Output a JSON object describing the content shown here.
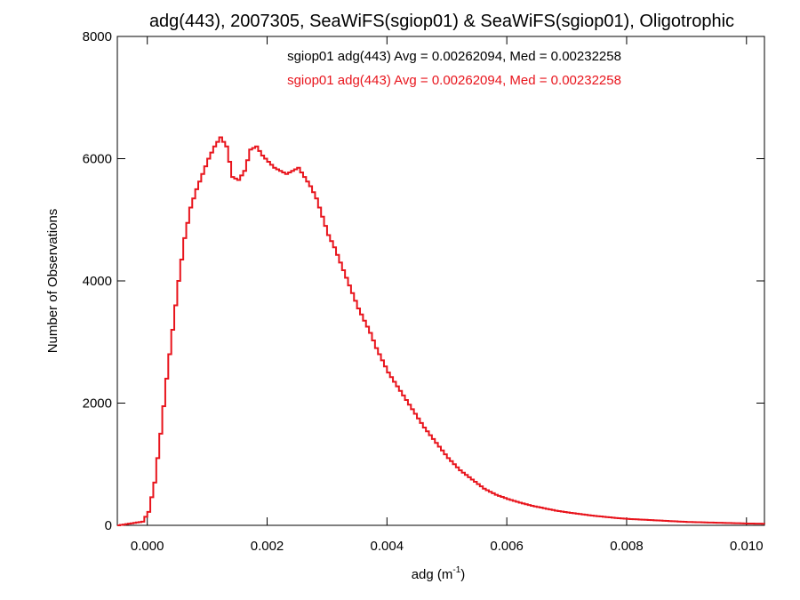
{
  "chart_data": {
    "type": "line",
    "title": "adg(443), 2007305, SeaWiFS(sgiop01) & SeaWiFS(sgiop01), Oligotrophic",
    "xlabel_base": "adg (m",
    "xlabel_sup": "-1",
    "xlabel_end": ")",
    "ylabel": "Number of Observations",
    "xlim": [
      -0.0005,
      0.0103
    ],
    "ylim": [
      0,
      8000
    ],
    "x_ticks": [
      0.0,
      0.002,
      0.004,
      0.006,
      0.008,
      0.01
    ],
    "x_tick_labels": [
      "0.000",
      "0.002",
      "0.004",
      "0.006",
      "0.008",
      "0.010"
    ],
    "y_ticks": [
      0,
      2000,
      4000,
      6000,
      8000
    ],
    "y_tick_labels": [
      "0",
      "2000",
      "4000",
      "6000",
      "8000"
    ],
    "grid": false,
    "annotations": [
      {
        "text": "sgiop01 adg(443) Avg = 0.00262094, Med = 0.00232258",
        "color": "#000000"
      },
      {
        "text": "sgiop01 adg(443) Avg = 0.00262094, Med = 0.00232258",
        "color": "#e8141c"
      }
    ],
    "series": [
      {
        "color": "#e8141c",
        "x": [
          -0.0005,
          -0.0001,
          0.0,
          0.0001,
          0.0002,
          0.0003,
          0.0004,
          0.0005,
          0.0006,
          0.0007,
          0.0008,
          0.0009,
          0.001,
          0.0011,
          0.0012,
          0.0013,
          0.0014,
          0.0015,
          0.0016,
          0.0017,
          0.0018,
          0.0019,
          0.002,
          0.0021,
          0.0022,
          0.0023,
          0.0024,
          0.0025,
          0.0026,
          0.0027,
          0.0028,
          0.0029,
          0.003,
          0.0031,
          0.0032,
          0.0033,
          0.0034,
          0.0035,
          0.0036,
          0.0037,
          0.0038,
          0.0039,
          0.004,
          0.0042,
          0.0044,
          0.0046,
          0.0048,
          0.005,
          0.0052,
          0.0054,
          0.0056,
          0.0058,
          0.006,
          0.0062,
          0.0064,
          0.0066,
          0.0068,
          0.007,
          0.0072,
          0.0074,
          0.0076,
          0.0078,
          0.008,
          0.0082,
          0.0084,
          0.0086,
          0.0088,
          0.009,
          0.0092,
          0.0094,
          0.0096,
          0.0098,
          0.01,
          0.0103
        ],
        "values": [
          0,
          60,
          220,
          700,
          1500,
          2400,
          3200,
          4000,
          4700,
          5200,
          5500,
          5750,
          6000,
          6200,
          6350,
          6200,
          5700,
          5650,
          5800,
          6150,
          6200,
          6050,
          5950,
          5850,
          5800,
          5750,
          5800,
          5850,
          5700,
          5550,
          5350,
          5050,
          4750,
          4550,
          4300,
          4050,
          3800,
          3550,
          3350,
          3150,
          2900,
          2700,
          2500,
          2200,
          1900,
          1600,
          1350,
          1100,
          900,
          750,
          600,
          500,
          430,
          370,
          320,
          280,
          240,
          210,
          185,
          160,
          140,
          120,
          105,
          95,
          85,
          75,
          65,
          55,
          50,
          45,
          40,
          35,
          30,
          25
        ]
      }
    ]
  }
}
